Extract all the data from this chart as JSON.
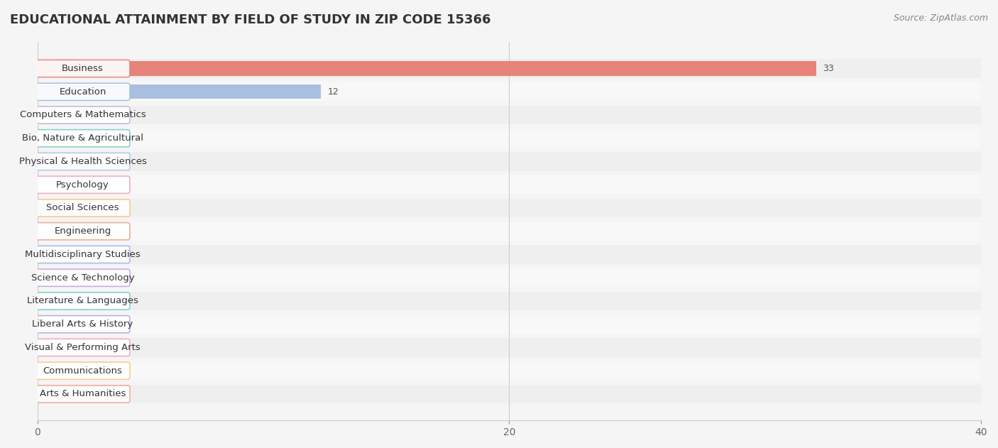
{
  "title": "EDUCATIONAL ATTAINMENT BY FIELD OF STUDY IN ZIP CODE 15366",
  "source": "Source: ZipAtlas.com",
  "categories": [
    "Business",
    "Education",
    "Computers & Mathematics",
    "Bio, Nature & Agricultural",
    "Physical & Health Sciences",
    "Psychology",
    "Social Sciences",
    "Engineering",
    "Multidisciplinary Studies",
    "Science & Technology",
    "Literature & Languages",
    "Liberal Arts & History",
    "Visual & Performing Arts",
    "Communications",
    "Arts & Humanities"
  ],
  "values": [
    33,
    12,
    0,
    0,
    0,
    0,
    0,
    0,
    0,
    0,
    0,
    0,
    0,
    0,
    0
  ],
  "bar_colors": [
    "#E8837A",
    "#A8BFE0",
    "#C5B8D8",
    "#7ECFCA",
    "#B8C5E8",
    "#F5A8BC",
    "#F5C98A",
    "#F0A898",
    "#A8B8E8",
    "#C8A8D8",
    "#7ECFCA",
    "#B0B0E0",
    "#F5A8BC",
    "#F5C98A",
    "#F0A898"
  ],
  "label_colors": [
    "#E8837A",
    "#A8BFE0",
    "#C5B8D8",
    "#7ECFCA",
    "#B8C5E8",
    "#F5A8BC",
    "#F5C98A",
    "#F0A898",
    "#A8B8E8",
    "#C8A8D8",
    "#7ECFCA",
    "#B0B0E0",
    "#F5A8BC",
    "#F5C98A",
    "#F0A898"
  ],
  "xlim": [
    0,
    40
  ],
  "xticks": [
    0,
    20,
    40
  ],
  "background_color": "#f5f5f5",
  "bar_background_color": "#f0f0f0",
  "title_fontsize": 13,
  "source_fontsize": 9,
  "label_fontsize": 9.5,
  "value_fontsize": 9
}
